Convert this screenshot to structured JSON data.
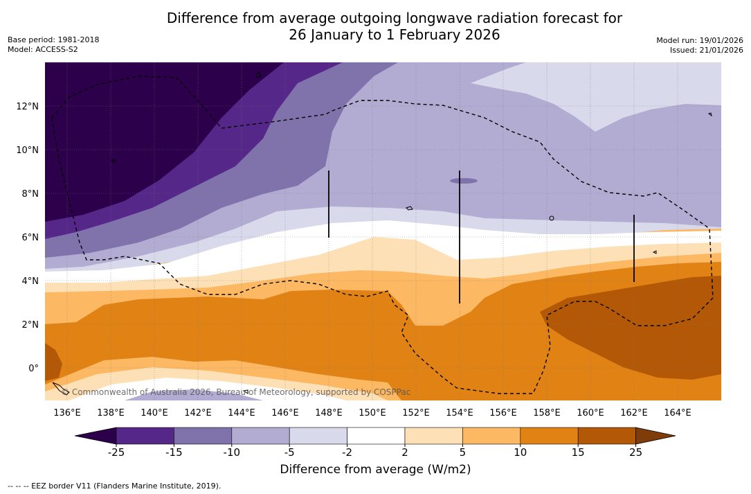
{
  "title_line1": "Difference from average outgoing longwave radiation forecast for",
  "title_line2": "26 January to 1 February 2026",
  "base_period": "Base period: 1981-2018",
  "model": "Model: ACCESS-S2",
  "model_run": "Model run: 19/01/2026",
  "issued": "Issued: 21/01/2026",
  "map": {
    "lon_labels": [
      "136°E",
      "138°E",
      "140°E",
      "142°E",
      "144°E",
      "146°E",
      "148°E",
      "150°E",
      "152°E",
      "154°E",
      "156°E",
      "158°E",
      "160°E",
      "162°E",
      "164°E"
    ],
    "lat_labels": [
      "12°N",
      "10°N",
      "8°N",
      "6°N",
      "4°N",
      "2°N",
      "0°"
    ],
    "copyright": "© Commonwealth of Australia 2026, Bureau of Meteorology, supported by COSPPac"
  },
  "colorbar": {
    "ticks": [
      "-25",
      "-15",
      "-10",
      "-5",
      "-2",
      "2",
      "5",
      "10",
      "15",
      "25"
    ],
    "colors": [
      "#2d004b",
      "#542788",
      "#8073ac",
      "#b2abd2",
      "#d8daeb",
      "#ffffff",
      "#fee0b6",
      "#fdb863",
      "#e08214",
      "#b35806",
      "#7f3b08"
    ],
    "title": "Difference from average (W/m2)"
  },
  "footnote": "--  --  -- EEZ border V11 (Flanders Marine Institute, 2019)."
}
